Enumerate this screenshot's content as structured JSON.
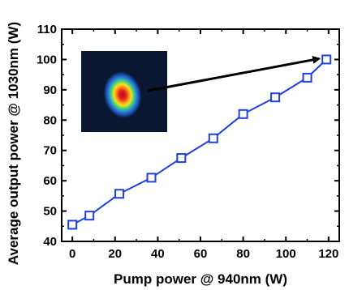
{
  "chart_data": {
    "type": "line",
    "title": "",
    "xlabel": "Pump power @ 940nm (W)",
    "ylabel": "Average output power @ 1030nm (W)",
    "xlim": [
      -5,
      125
    ],
    "ylim": [
      40,
      110
    ],
    "xticks": [
      0,
      20,
      40,
      60,
      80,
      100,
      120
    ],
    "yticks": [
      40,
      50,
      60,
      70,
      80,
      90,
      100,
      110
    ],
    "grid": false,
    "series": [
      {
        "color": "#1f3fe0",
        "marker": "open-square",
        "x": [
          0,
          8,
          22,
          37,
          51,
          66,
          80,
          95,
          110,
          119
        ],
        "y": [
          45.5,
          48.5,
          55.7,
          61,
          67.5,
          74,
          82,
          87.5,
          94,
          100
        ]
      }
    ],
    "inset": {
      "description_icon": "beam-profile-image",
      "colors": {
        "background": "#0a1730",
        "outer": "#2a7de0",
        "inner_ring": "#f7e11c",
        "core": "#e61f1f"
      }
    },
    "annotation_arrow": {
      "to_point_index": 9,
      "color": "#000000"
    }
  }
}
